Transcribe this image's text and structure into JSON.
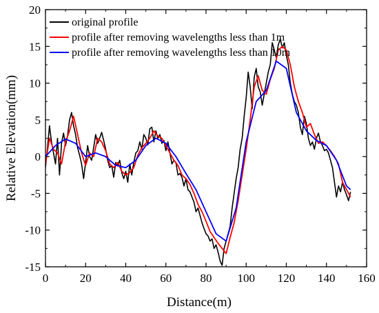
{
  "chart_data": {
    "type": "line",
    "title": "",
    "xlabel": "Distance(m)",
    "ylabel": "Relative Elevation(mm)",
    "xlim": [
      0,
      160
    ],
    "ylim": [
      -15,
      20
    ],
    "xticks": [
      0,
      20,
      40,
      60,
      80,
      100,
      120,
      140,
      160
    ],
    "yticks": [
      -15,
      -10,
      -5,
      0,
      5,
      10,
      15,
      20
    ],
    "grid": false,
    "legend_position": "top-left",
    "series": [
      {
        "name": "original profile",
        "color": "#000000",
        "x": [
          0,
          1,
          2,
          3,
          4,
          5,
          6,
          7,
          8,
          9,
          10,
          11,
          12,
          13,
          14,
          15,
          16,
          17,
          18,
          19,
          20,
          21,
          22,
          23,
          24,
          25,
          26,
          27,
          28,
          29,
          30,
          31,
          32,
          33,
          34,
          35,
          36,
          37,
          38,
          39,
          40,
          41,
          42,
          43,
          44,
          45,
          46,
          47,
          48,
          49,
          50,
          51,
          52,
          53,
          54,
          55,
          56,
          57,
          58,
          59,
          60,
          61,
          62,
          63,
          64,
          65,
          66,
          67,
          68,
          69,
          70,
          71,
          72,
          73,
          74,
          75,
          76,
          77,
          78,
          79,
          80,
          81,
          82,
          83,
          84,
          85,
          86,
          87,
          88,
          89,
          90,
          91,
          92,
          93,
          94,
          95,
          96,
          97,
          98,
          99,
          100,
          101,
          102,
          103,
          104,
          105,
          106,
          107,
          108,
          109,
          110,
          111,
          112,
          113,
          114,
          115,
          116,
          117,
          118,
          119,
          120,
          121,
          122,
          123,
          124,
          125,
          126,
          127,
          128,
          129,
          130,
          131,
          132,
          133,
          134,
          135,
          136,
          137,
          138,
          139,
          140,
          141,
          142,
          143,
          144,
          145,
          146,
          147,
          148,
          149,
          150,
          151,
          152
        ],
        "y": [
          -1.5,
          1.2,
          4.2,
          2.0,
          0.5,
          -1.0,
          2.5,
          -2.5,
          1.8,
          3.2,
          1.5,
          2.8,
          5.0,
          6.0,
          4.2,
          3.0,
          1.2,
          0.2,
          -1.0,
          -3.0,
          -0.8,
          1.5,
          0.0,
          -0.5,
          1.2,
          3.0,
          1.8,
          2.5,
          3.3,
          2.2,
          1.0,
          -0.5,
          -1.5,
          -1.2,
          -2.8,
          -0.8,
          -1.2,
          -0.5,
          -2.2,
          -3.0,
          -2.0,
          -3.5,
          -1.0,
          -2.5,
          -0.8,
          0.5,
          0.8,
          2.0,
          1.0,
          3.0,
          2.5,
          1.6,
          3.8,
          4.0,
          2.0,
          3.5,
          2.5,
          3.0,
          1.8,
          2.2,
          0.8,
          2.0,
          0.5,
          -1.0,
          -0.5,
          -0.8,
          -2.5,
          -2.3,
          -2.8,
          -4.0,
          -3.0,
          -4.5,
          -4.8,
          -5.5,
          -6.2,
          -7.5,
          -7.0,
          -8.0,
          -9.0,
          -9.8,
          -10.5,
          -10.8,
          -11.5,
          -11.2,
          -12.5,
          -12.0,
          -13.0,
          -14.2,
          -14.8,
          -12.5,
          -11.5,
          -10.5,
          -9.5,
          -7.0,
          -5.0,
          -3.0,
          -1.5,
          1.0,
          2.5,
          5.5,
          8.0,
          11.5,
          9.5,
          6.5,
          10.8,
          12.0,
          9.5,
          8.8,
          7.0,
          8.5,
          10.0,
          11.5,
          12.5,
          15.5,
          14.5,
          13.5,
          15.2,
          16.0,
          14.8,
          15.5,
          13.8,
          12.5,
          10.0,
          8.5,
          7.5,
          7.0,
          6.0,
          4.0,
          3.0,
          5.5,
          4.5,
          2.5,
          1.5,
          2.0,
          1.0,
          2.5,
          3.2,
          2.0,
          1.5,
          0.8,
          1.0,
          0.5,
          -0.5,
          -1.5,
          -3.5,
          -5.5,
          -4.0,
          -4.8,
          -3.5,
          -4.5,
          -5.2,
          -6.0,
          -4.8
        ]
      },
      {
        "name": "profile after removing wavelengths less than 1m",
        "color": "#ff0000",
        "x": [
          0,
          2,
          4,
          6,
          8,
          10,
          12,
          14,
          16,
          18,
          20,
          22,
          24,
          26,
          28,
          30,
          32,
          34,
          36,
          38,
          40,
          42,
          44,
          46,
          48,
          50,
          52,
          54,
          56,
          58,
          60,
          62,
          64,
          66,
          68,
          70,
          72,
          74,
          76,
          78,
          80,
          82,
          84,
          86,
          88,
          90,
          92,
          94,
          96,
          98,
          100,
          102,
          104,
          106,
          108,
          110,
          112,
          114,
          116,
          118,
          120,
          122,
          124,
          126,
          128,
          130,
          132,
          134,
          136,
          138,
          140,
          142,
          144,
          146,
          148,
          150,
          152
        ],
        "y": [
          -1.0,
          2.5,
          1.0,
          0.5,
          -1.0,
          2.0,
          3.5,
          5.5,
          3.0,
          0.5,
          -1.2,
          0.5,
          0.0,
          2.5,
          2.0,
          0.8,
          -1.0,
          -1.5,
          -0.8,
          -2.0,
          -2.5,
          -2.2,
          -1.5,
          0.2,
          1.2,
          1.8,
          2.5,
          3.5,
          2.8,
          2.5,
          1.5,
          0.5,
          -0.5,
          -1.2,
          -2.5,
          -3.0,
          -3.8,
          -5.0,
          -6.5,
          -7.5,
          -8.8,
          -10.2,
          -11.0,
          -11.8,
          -12.5,
          -13.2,
          -11.0,
          -9.0,
          -6.0,
          -2.5,
          1.0,
          5.0,
          9.5,
          11.0,
          9.0,
          8.5,
          10.5,
          12.0,
          14.5,
          15.0,
          14.5,
          12.5,
          9.5,
          7.5,
          6.0,
          4.0,
          4.5,
          3.0,
          1.8,
          2.0,
          1.5,
          0.8,
          0.0,
          -1.0,
          -3.5,
          -4.5,
          -5.5
        ]
      },
      {
        "name": "profile after removing wavelengths less than 10m",
        "color": "#0000ff",
        "x": [
          0,
          5,
          10,
          15,
          20,
          25,
          30,
          35,
          40,
          45,
          50,
          55,
          60,
          65,
          70,
          75,
          80,
          85,
          90,
          95,
          100,
          105,
          110,
          115,
          120,
          125,
          130,
          135,
          140,
          145,
          150,
          152
        ],
        "y": [
          0.0,
          1.5,
          2.4,
          1.8,
          0.0,
          0.5,
          0.0,
          -1.2,
          -1.5,
          -0.5,
          1.5,
          2.5,
          1.8,
          0.0,
          -2.3,
          -4.5,
          -7.5,
          -10.5,
          -11.5,
          -7.0,
          2.0,
          7.5,
          9.0,
          13.0,
          12.0,
          6.0,
          3.5,
          2.2,
          1.5,
          -0.5,
          -4.0,
          -4.5
        ]
      }
    ]
  }
}
